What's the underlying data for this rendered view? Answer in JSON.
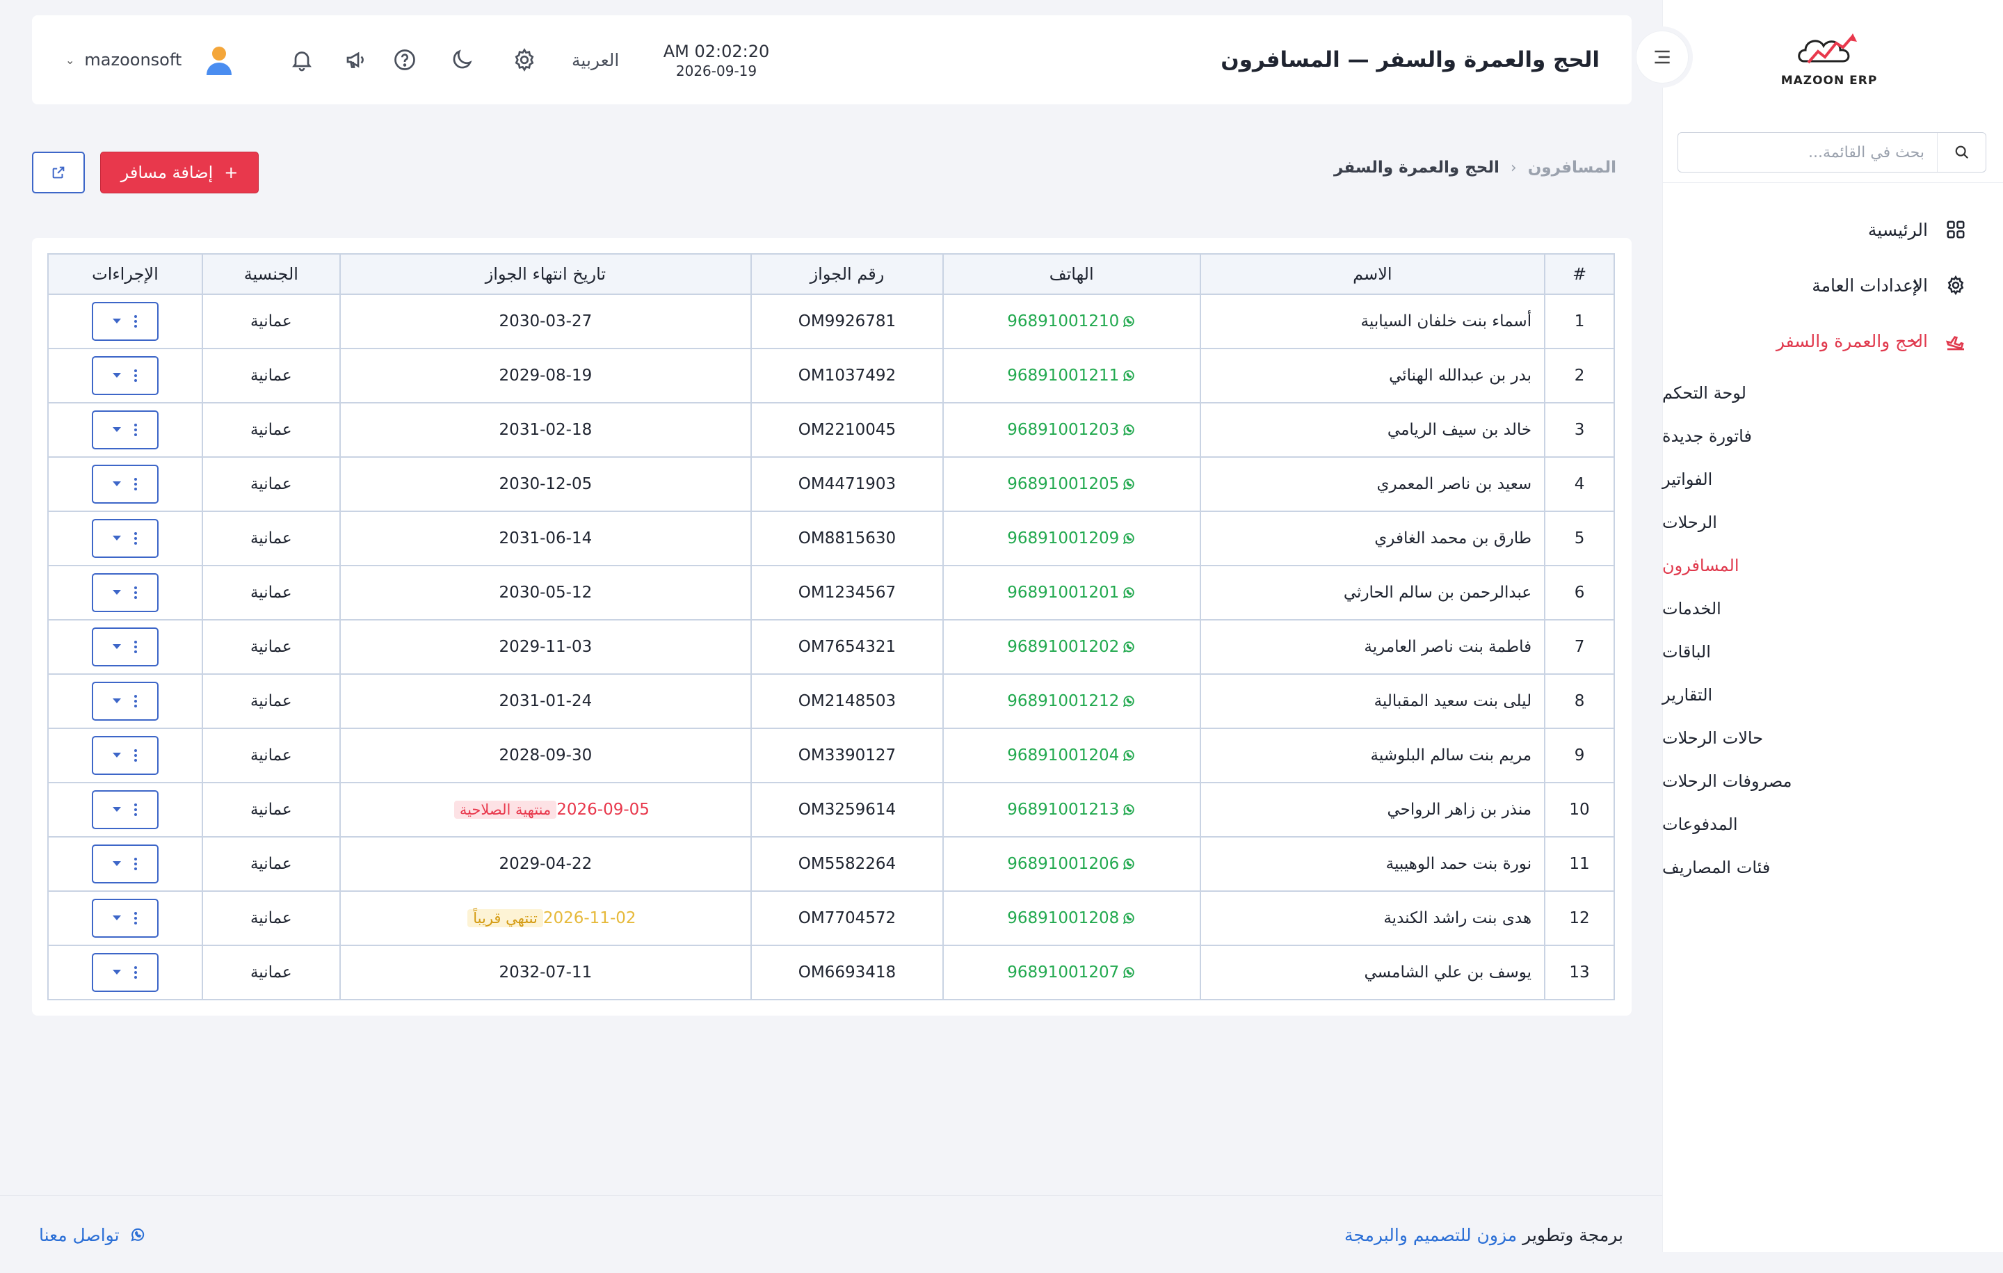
{
  "brand": {
    "logo_text": "MAZOON ERP",
    "logo_small": "ERP"
  },
  "sidebar": {
    "search_placeholder": "بحث في القائمة...",
    "items": [
      {
        "label": "الرئيسية",
        "icon": "grid-icon"
      },
      {
        "label": "الإعدادات العامة",
        "icon": "gear-icon"
      },
      {
        "label": "الحج والعمرة والسفر",
        "icon": "plane-icon",
        "active": true
      }
    ],
    "sub_items": [
      "لوحة التحكم",
      "فاتورة جديدة",
      "الفواتير",
      "الرحلات",
      "المسافرون",
      "الخدمات",
      "الباقات",
      "التقارير",
      "حالات الرحلات",
      "مصروفات الرحلات",
      "المدفوعات",
      "فئات المصاريف"
    ],
    "active_sub": "المسافرون"
  },
  "header": {
    "title": "الحج والعمرة والسفر — المسافرون",
    "time": "AM 02:02:20",
    "date": "2026-09-19",
    "language": "العربية",
    "username": "mazoonsoft"
  },
  "breadcrumb": {
    "parent": "الحج والعمرة والسفر",
    "separator": "‹",
    "current": "المسافرون"
  },
  "actions": {
    "add_label": "إضافة مسافر",
    "add_icon": "+"
  },
  "table": {
    "columns": [
      "#",
      "الاسم",
      "الهاتف",
      "رقم الجواز",
      "تاريخ انتهاء الجواز",
      "الجنسية",
      "الإجراءات"
    ],
    "rows": [
      {
        "n": "1",
        "name": "أسماء بنت خلفان السيابية",
        "phone": "96891001210",
        "passport": "OM9926781",
        "expiry": "2030-03-27",
        "status": "",
        "nationality": "عمانية"
      },
      {
        "n": "2",
        "name": "بدر بن عبدالله الهنائي",
        "phone": "96891001211",
        "passport": "OM1037492",
        "expiry": "2029-08-19",
        "status": "",
        "nationality": "عمانية"
      },
      {
        "n": "3",
        "name": "خالد بن سيف الريامي",
        "phone": "96891001203",
        "passport": "OM2210045",
        "expiry": "2031-02-18",
        "status": "",
        "nationality": "عمانية"
      },
      {
        "n": "4",
        "name": "سعيد بن ناصر المعمري",
        "phone": "96891001205",
        "passport": "OM4471903",
        "expiry": "2030-12-05",
        "status": "",
        "nationality": "عمانية"
      },
      {
        "n": "5",
        "name": "طارق بن محمد الغافري",
        "phone": "96891001209",
        "passport": "OM8815630",
        "expiry": "2031-06-14",
        "status": "",
        "nationality": "عمانية"
      },
      {
        "n": "6",
        "name": "عبدالرحمن بن سالم الحارثي",
        "phone": "96891001201",
        "passport": "OM1234567",
        "expiry": "2030-05-12",
        "status": "",
        "nationality": "عمانية"
      },
      {
        "n": "7",
        "name": "فاطمة بنت ناصر العامرية",
        "phone": "96891001202",
        "passport": "OM7654321",
        "expiry": "2029-11-03",
        "status": "",
        "nationality": "عمانية"
      },
      {
        "n": "8",
        "name": "ليلى بنت سعيد المقبالية",
        "phone": "96891001212",
        "passport": "OM2148503",
        "expiry": "2031-01-24",
        "status": "",
        "nationality": "عمانية"
      },
      {
        "n": "9",
        "name": "مريم بنت سالم البلوشية",
        "phone": "96891001204",
        "passport": "OM3390127",
        "expiry": "2028-09-30",
        "status": "",
        "nationality": "عمانية"
      },
      {
        "n": "10",
        "name": "منذر بن زاهر الرواحي",
        "phone": "96891001213",
        "passport": "OM3259614",
        "expiry": "2026-09-05",
        "status": "منتهية الصلاحية",
        "status_type": "expired",
        "nationality": "عمانية"
      },
      {
        "n": "11",
        "name": "نورة بنت حمد الوهيبية",
        "phone": "96891001206",
        "passport": "OM5582264",
        "expiry": "2029-04-22",
        "status": "",
        "nationality": "عمانية"
      },
      {
        "n": "12",
        "name": "هدى بنت راشد الكندية",
        "phone": "96891001208",
        "passport": "OM7704572",
        "expiry": "2026-11-02",
        "status": "تنتهي قريباً",
        "status_type": "soon",
        "nationality": "عمانية"
      },
      {
        "n": "13",
        "name": "يوسف بن علي الشامسي",
        "phone": "96891001207",
        "passport": "OM6693418",
        "expiry": "2032-07-11",
        "status": "",
        "nationality": "عمانية"
      }
    ]
  },
  "footer": {
    "credit_prefix": "برمجة وتطوير",
    "credit_link": "مزون للتصميم والبرمجة",
    "contact": "تواصل معنا"
  },
  "colors": {
    "accent": "#e8384c",
    "link": "#2b6fd6",
    "whatsapp": "#22a94f",
    "outline": "#3d66c8"
  }
}
